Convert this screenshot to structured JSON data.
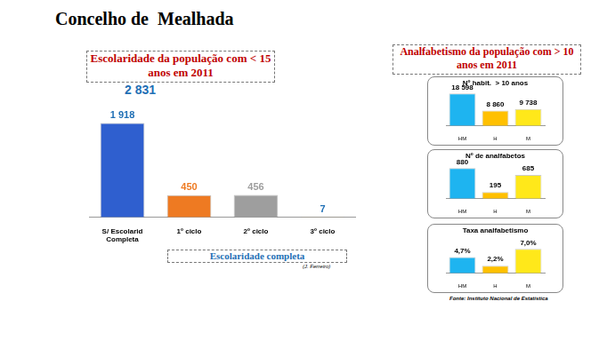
{
  "title": "Concelho de  Mealhada",
  "right_header": "Analfabetismo da população com > 10 anos em 2011",
  "source": "Fonte: Instituto Nacional de Estatística",
  "chart_data": [
    {
      "type": "bar",
      "title": "Escolaridade da população com < 15 anos em 2011",
      "subtitle": "2 831",
      "categories": [
        "S/ Escolarid Completa",
        "1º ciclo",
        "2º ciclo",
        "3º ciclo"
      ],
      "values": [
        1918,
        450,
        456,
        7
      ],
      "value_labels": [
        "1 918",
        "450",
        "456",
        "7"
      ],
      "colors": [
        "#2f5fcf",
        "#ee7a22",
        "#9e9e9e",
        "#c9a100"
      ],
      "annotations": [
        "Escolaridade completa",
        "(J. Ferreiro)"
      ],
      "data_labels": true,
      "tick_labels": "x",
      "grid": false
    },
    {
      "type": "bar",
      "title": "Nº habit.  > 10 anos",
      "categories": [
        "HM",
        "H",
        "M"
      ],
      "values": [
        18598,
        8860,
        9738
      ],
      "value_labels": [
        "18 598",
        "8 860",
        "9 738"
      ],
      "colors": [
        "#1eb4f0",
        "#ffc000",
        "#ffe81a"
      ],
      "data_labels": true,
      "tick_labels": "x",
      "grid": false
    },
    {
      "type": "bar",
      "title": "Nº de analfabetos",
      "categories": [
        "HM",
        "H",
        "M"
      ],
      "values": [
        880,
        195,
        685
      ],
      "colors": [
        "#1eb4f0",
        "#ffc000",
        "#ffe81a"
      ],
      "data_labels": true,
      "tick_labels": "x",
      "grid": false
    },
    {
      "type": "bar",
      "title": "Taxa analfabetismo",
      "categories": [
        "HM",
        "H",
        "M"
      ],
      "values": [
        4.7,
        2.2,
        7.0
      ],
      "value_labels": [
        "4,7%",
        "2,2%",
        "7,0%"
      ],
      "colors": [
        "#1eb4f0",
        "#ffc000",
        "#ffe81a"
      ],
      "data_labels": true,
      "tick_labels": "x",
      "grid": false
    }
  ]
}
